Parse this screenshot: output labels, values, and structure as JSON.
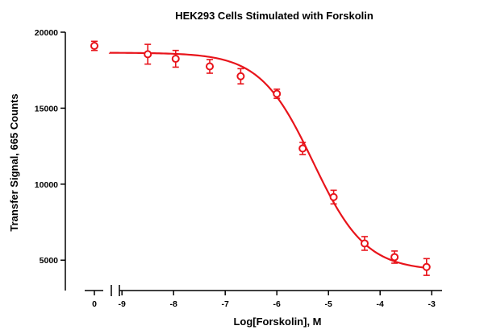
{
  "chart_data": {
    "type": "scatter",
    "title": "HEK293 Cells Stimulated with Forskolin",
    "xlabel": "Log[Forskolin], M",
    "ylabel": "Transfer Signal, 665 Counts",
    "x_break_label": "0",
    "xlim": [
      -9.05,
      -2.8
    ],
    "ylim": [
      3000,
      20000
    ],
    "xticks": [
      -9,
      -8,
      -7,
      -6,
      -5,
      -4,
      -3
    ],
    "xtick_labels": [
      "-9",
      "-8",
      "-7",
      "-6",
      "-5",
      "-4",
      "-3"
    ],
    "yticks": [
      5000,
      10000,
      15000,
      20000
    ],
    "ytick_labels": [
      "5000",
      "10000",
      "15000",
      "20000"
    ],
    "color": "#e8141b",
    "grid": false,
    "zero_point": {
      "y": 19100,
      "err": 300
    },
    "points": [
      {
        "x": -8.5,
        "y": 18550,
        "err": 650
      },
      {
        "x": -7.96,
        "y": 18250,
        "err": 550
      },
      {
        "x": -7.3,
        "y": 17750,
        "err": 450
      },
      {
        "x": -6.7,
        "y": 17100,
        "err": 500
      },
      {
        "x": -6.0,
        "y": 15950,
        "err": 300
      },
      {
        "x": -5.5,
        "y": 12350,
        "err": 400
      },
      {
        "x": -4.9,
        "y": 9150,
        "err": 450
      },
      {
        "x": -4.3,
        "y": 6100,
        "err": 450
      },
      {
        "x": -3.72,
        "y": 5200,
        "err": 400
      },
      {
        "x": -3.1,
        "y": 4550,
        "err": 550
      }
    ],
    "fit": {
      "bottom": 4300,
      "top": 18650,
      "logEC50": -5.3,
      "hillslope": -0.85
    }
  }
}
